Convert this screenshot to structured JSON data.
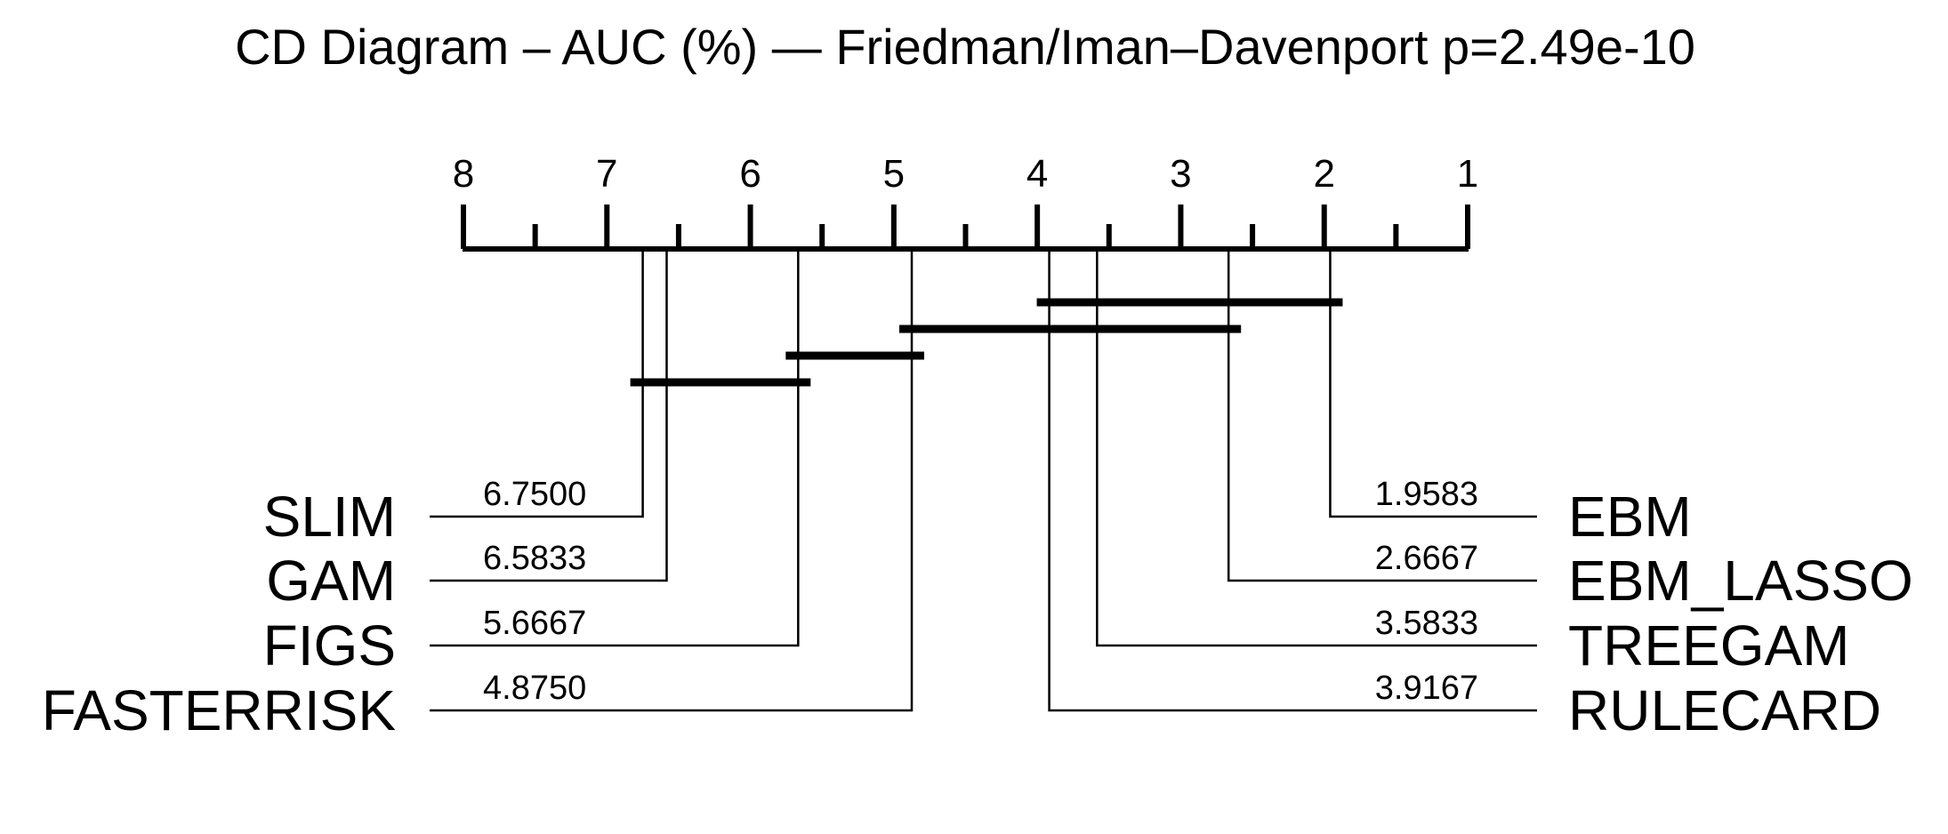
{
  "title": "CD Diagram – AUC (%) — Friedman/Iman–Davenport p=2.49e-10",
  "chart_data": {
    "type": "critical-difference",
    "axis": {
      "min": 1,
      "max": 8,
      "reversed": true,
      "ticks": [
        "8",
        "7",
        "6",
        "5",
        "4",
        "3",
        "2",
        "1"
      ]
    },
    "left_methods": [
      {
        "name": "SLIM",
        "rank": 6.75,
        "rank_label": "6.7500"
      },
      {
        "name": "GAM",
        "rank": 6.5833,
        "rank_label": "6.5833"
      },
      {
        "name": "FIGS",
        "rank": 5.6667,
        "rank_label": "5.6667"
      },
      {
        "name": "FASTERRISK",
        "rank": 4.875,
        "rank_label": "4.8750"
      }
    ],
    "right_methods": [
      {
        "name": "EBM",
        "rank": 1.9583,
        "rank_label": "1.9583"
      },
      {
        "name": "EBM_LASSO",
        "rank": 2.6667,
        "rank_label": "2.6667"
      },
      {
        "name": "TREEGAM",
        "rank": 3.5833,
        "rank_label": "3.5833"
      },
      {
        "name": "RULECARD",
        "rank": 3.9167,
        "rank_label": "3.9167"
      }
    ],
    "cliques": [
      {
        "from": 3.9167,
        "to": 1.9583
      },
      {
        "from": 4.875,
        "to": 2.6667
      },
      {
        "from": 5.6667,
        "to": 4.875
      },
      {
        "from": 6.75,
        "to": 5.6667
      }
    ]
  }
}
